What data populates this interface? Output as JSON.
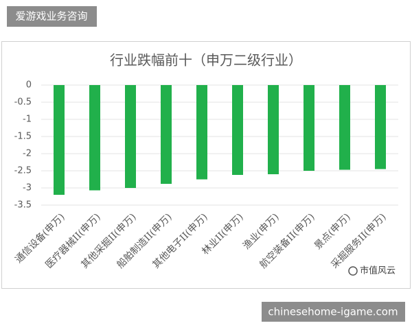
{
  "header": {
    "label": "爱游戏业务咨询"
  },
  "chart_data": {
    "type": "bar",
    "title": "行业跌幅前十（申万二级行业）",
    "categories": [
      "通信设备(申万)",
      "医疗器械II(申万)",
      "其他采掘II(申万)",
      "船舶制造II(申万)",
      "其他电子II(申万)",
      "林业II(申万)",
      "渔业(申万)",
      "航空装备II(申万)",
      "景点(申万)",
      "采掘服务II(申万)"
    ],
    "values": [
      -3.2,
      -3.07,
      -3.0,
      -2.88,
      -2.75,
      -2.62,
      -2.6,
      -2.5,
      -2.47,
      -2.45
    ],
    "color": "#21b04b",
    "ylim": [
      -3.5,
      0
    ],
    "yticks": [
      0,
      -0.5,
      -1,
      -1.5,
      -2,
      -2.5,
      -3,
      -3.5
    ],
    "grid": true
  },
  "watermark": "市值风云",
  "footer": "chinesehome-igame.com"
}
